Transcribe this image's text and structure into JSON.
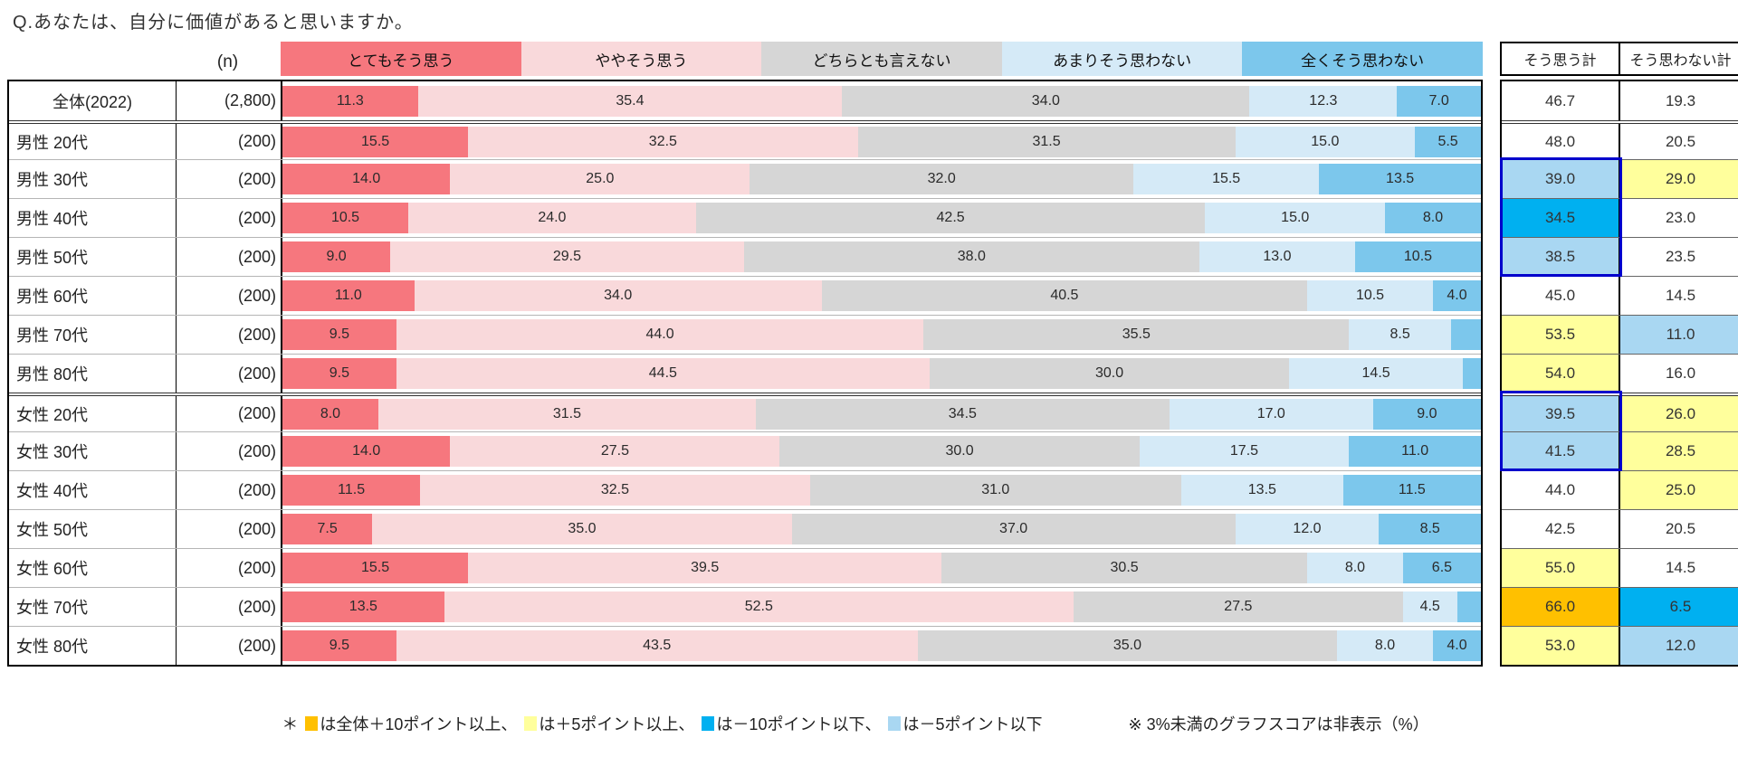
{
  "title": "Q.あなたは、自分に価値があると思いますか。",
  "n_label": "(n)",
  "chart_data": {
    "type": "bar",
    "stacked": true,
    "orientation": "horizontal",
    "unit": "%",
    "xlim": [
      0,
      100
    ],
    "hide_label_below": 3,
    "categories": [
      "全体(2022)",
      "男性 20代",
      "男性 30代",
      "男性 40代",
      "男性 50代",
      "男性 60代",
      "男性 70代",
      "男性 80代",
      "女性 20代",
      "女性 30代",
      "女性 40代",
      "女性 50代",
      "女性 60代",
      "女性 70代",
      "女性 80代"
    ],
    "n_values": [
      "(2,800)",
      "(200)",
      "(200)",
      "(200)",
      "(200)",
      "(200)",
      "(200)",
      "(200)",
      "(200)",
      "(200)",
      "(200)",
      "(200)",
      "(200)",
      "(200)",
      "(200)"
    ],
    "series": [
      {
        "name": "とてもそう思う",
        "color": "#F6777E",
        "values": [
          11.3,
          15.5,
          14.0,
          10.5,
          9.0,
          11.0,
          9.5,
          9.5,
          8.0,
          14.0,
          11.5,
          7.5,
          15.5,
          13.5,
          9.5
        ]
      },
      {
        "name": "ややそう思う",
        "color": "#F9D9DB",
        "values": [
          35.4,
          32.5,
          25.0,
          24.0,
          29.5,
          34.0,
          44.0,
          44.5,
          31.5,
          27.5,
          32.5,
          35.0,
          39.5,
          52.5,
          43.5
        ]
      },
      {
        "name": "どちらとも言えない",
        "color": "#D6D6D6",
        "values": [
          34.0,
          31.5,
          32.0,
          42.5,
          38.0,
          40.5,
          35.5,
          30.0,
          34.5,
          30.0,
          31.0,
          37.0,
          30.5,
          27.5,
          35.0
        ]
      },
      {
        "name": "あまりそう思わない",
        "color": "#D5EAF7",
        "values": [
          12.3,
          15.0,
          15.5,
          15.0,
          13.0,
          10.5,
          8.5,
          14.5,
          17.0,
          17.5,
          13.5,
          12.0,
          8.0,
          4.5,
          8.0
        ]
      },
      {
        "name": "全くそう思わない",
        "color": "#7CC7EC",
        "values": [
          7.0,
          5.5,
          13.5,
          8.0,
          10.5,
          4.0,
          2.5,
          1.5,
          9.0,
          11.0,
          11.5,
          8.5,
          6.5,
          2.0,
          4.0
        ]
      }
    ]
  },
  "summary": {
    "headers": [
      "そう思う計",
      "そう思わない計"
    ],
    "agree": [
      "46.7",
      "48.0",
      "39.0",
      "34.5",
      "38.5",
      "45.0",
      "53.5",
      "54.0",
      "39.5",
      "41.5",
      "44.0",
      "42.5",
      "55.0",
      "66.0",
      "53.0"
    ],
    "disagree": [
      "19.3",
      "20.5",
      "29.0",
      "23.0",
      "23.5",
      "14.5",
      "11.0",
      "16.0",
      "26.0",
      "28.5",
      "25.0",
      "20.5",
      "14.5",
      "6.5",
      "12.0"
    ],
    "agree_highlight": [
      "none",
      "none",
      "light_blue",
      "deep_blue",
      "light_blue",
      "none",
      "yellow",
      "yellow",
      "light_blue",
      "light_blue",
      "none",
      "none",
      "yellow",
      "orange",
      "yellow"
    ],
    "disagree_highlight": [
      "none",
      "none",
      "yellow",
      "none",
      "none",
      "none",
      "light_blue",
      "none",
      "yellow",
      "yellow",
      "yellow",
      "none",
      "none",
      "deep_blue",
      "light_blue"
    ],
    "outline_boxes": [
      {
        "col": "agree",
        "start_row": 2,
        "end_row": 4
      },
      {
        "col": "agree",
        "start_row": 8,
        "end_row": 9
      }
    ]
  },
  "highlight_colors": {
    "orange": "#FFC000",
    "yellow": "#FFFF9C",
    "deep_blue": "#00B0F0",
    "light_blue": "#A9D7F2",
    "none": "#FFFFFF"
  },
  "group_start_rows": [
    1,
    8
  ],
  "footnote": {
    "prefix": "＊",
    "items": [
      {
        "color": "orange",
        "text": "は全体＋10ポイント以上、"
      },
      {
        "color": "yellow",
        "text": "は＋5ポイント以上、"
      },
      {
        "color": "deep_blue",
        "text": "は－10ポイント以下、"
      },
      {
        "color": "light_blue",
        "text": "は－5ポイント以下"
      }
    ],
    "note": "※ 3%未満のグラフスコアは非表示（%）"
  }
}
